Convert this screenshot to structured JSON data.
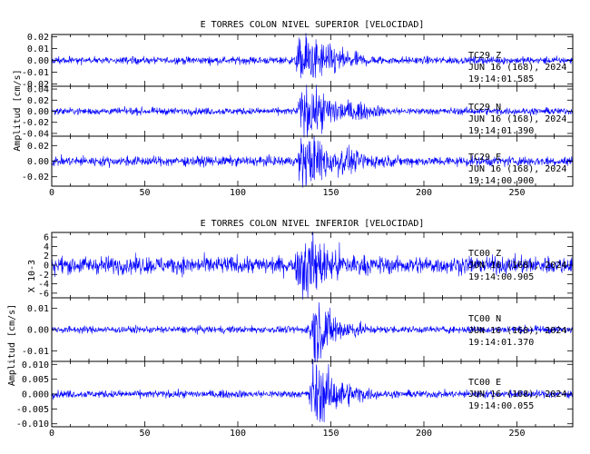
{
  "colors": {
    "trace": "#0000ff",
    "axes": "#000000",
    "background": "#ffffff"
  },
  "chart_data": [
    {
      "type": "line",
      "title": "E TORRES COLON NIVEL SUPERIOR [VELOCIDAD]",
      "ylabel": "Amplitud [cm/s]",
      "xlim": [
        0,
        280
      ],
      "x_ticks": [
        "0",
        "50",
        "100",
        "150",
        "200",
        "250"
      ],
      "panels": [
        {
          "name": "TC29 Z",
          "station": "TC29",
          "component": "Z",
          "date": "JUN 16 (168), 2024",
          "time": "19:14:01.585",
          "ylim": [
            -0.022,
            0.022
          ],
          "y_ticks": [
            "0.02",
            "0.01",
            "0.00",
            "-0.01",
            "-0.02"
          ],
          "y_values": [
            0.02,
            0.01,
            0.0,
            -0.01,
            -0.02
          ],
          "noise": 0.0015,
          "peak": 0.02,
          "onset": 130,
          "coda_end": 200
        },
        {
          "name": "TC29 N",
          "station": "TC29",
          "component": "N",
          "date": "JUN 16 (168), 2024",
          "time": "19:14:01.390",
          "ylim": [
            -0.045,
            0.045
          ],
          "y_ticks": [
            "0.04",
            "0.02",
            "0.00",
            "-0.02",
            "-0.04"
          ],
          "y_values": [
            0.04,
            0.02,
            0.0,
            -0.02,
            -0.04
          ],
          "noise": 0.003,
          "peak": 0.04,
          "onset": 131,
          "coda_end": 210
        },
        {
          "name": "TC29 E",
          "station": "TC29",
          "component": "E",
          "date": "JUN 16 (168), 2024",
          "time": "19:14:00.900",
          "ylim": [
            -0.032,
            0.032
          ],
          "y_ticks": [
            "0.02",
            "0.00",
            "-0.02"
          ],
          "y_values": [
            0.02,
            0.0,
            -0.02
          ],
          "noise": 0.003,
          "peak": 0.03,
          "onset": 131,
          "coda_end": 215
        }
      ]
    },
    {
      "type": "line",
      "title": "E TORRES COLON NIVEL INFERIOR [VELOCIDAD]",
      "ylabel": "Amplitud [cm/s]",
      "scale_label": "X 10-3",
      "xlim": [
        0,
        280
      ],
      "x_ticks": [
        "0",
        "50",
        "100",
        "150",
        "200",
        "250"
      ],
      "panels": [
        {
          "name": "TC00 Z",
          "station": "TC00",
          "component": "Z",
          "date": "JUN 16 (168), 2024",
          "time": "19:14:00.905",
          "ylim": [
            -7,
            7
          ],
          "y_ticks": [
            "6",
            "4",
            "2",
            "0",
            "-2",
            "-4",
            "-6"
          ],
          "y_values": [
            6,
            4,
            2,
            0,
            -2,
            -4,
            -6
          ],
          "noise": 0.9,
          "peak": 6.5,
          "onset": 130,
          "coda_end": 205
        },
        {
          "name": "TC00 N",
          "station": "TC00",
          "component": "N",
          "date": "JUN 16 (168), 2024",
          "time": "19:14:01.370",
          "ylim": [
            -0.015,
            0.015
          ],
          "y_ticks": [
            "0.01",
            "0.00",
            "-0.01"
          ],
          "y_values": [
            0.01,
            0.0,
            -0.01
          ],
          "noise": 0.0008,
          "peak": 0.014,
          "onset": 137,
          "coda_end": 185
        },
        {
          "name": "TC00 E",
          "station": "TC00",
          "component": "E",
          "date": "JUN 16 (168), 2024",
          "time": "19:14:00.055",
          "ylim": [
            -0.011,
            0.011
          ],
          "y_ticks": [
            "0.010",
            "0.005",
            "0.000",
            "-0.005",
            "-0.010"
          ],
          "y_values": [
            0.01,
            0.005,
            0.0,
            -0.005,
            -0.01
          ],
          "noise": 0.0006,
          "peak": 0.01,
          "onset": 137,
          "coda_end": 190
        }
      ]
    }
  ]
}
